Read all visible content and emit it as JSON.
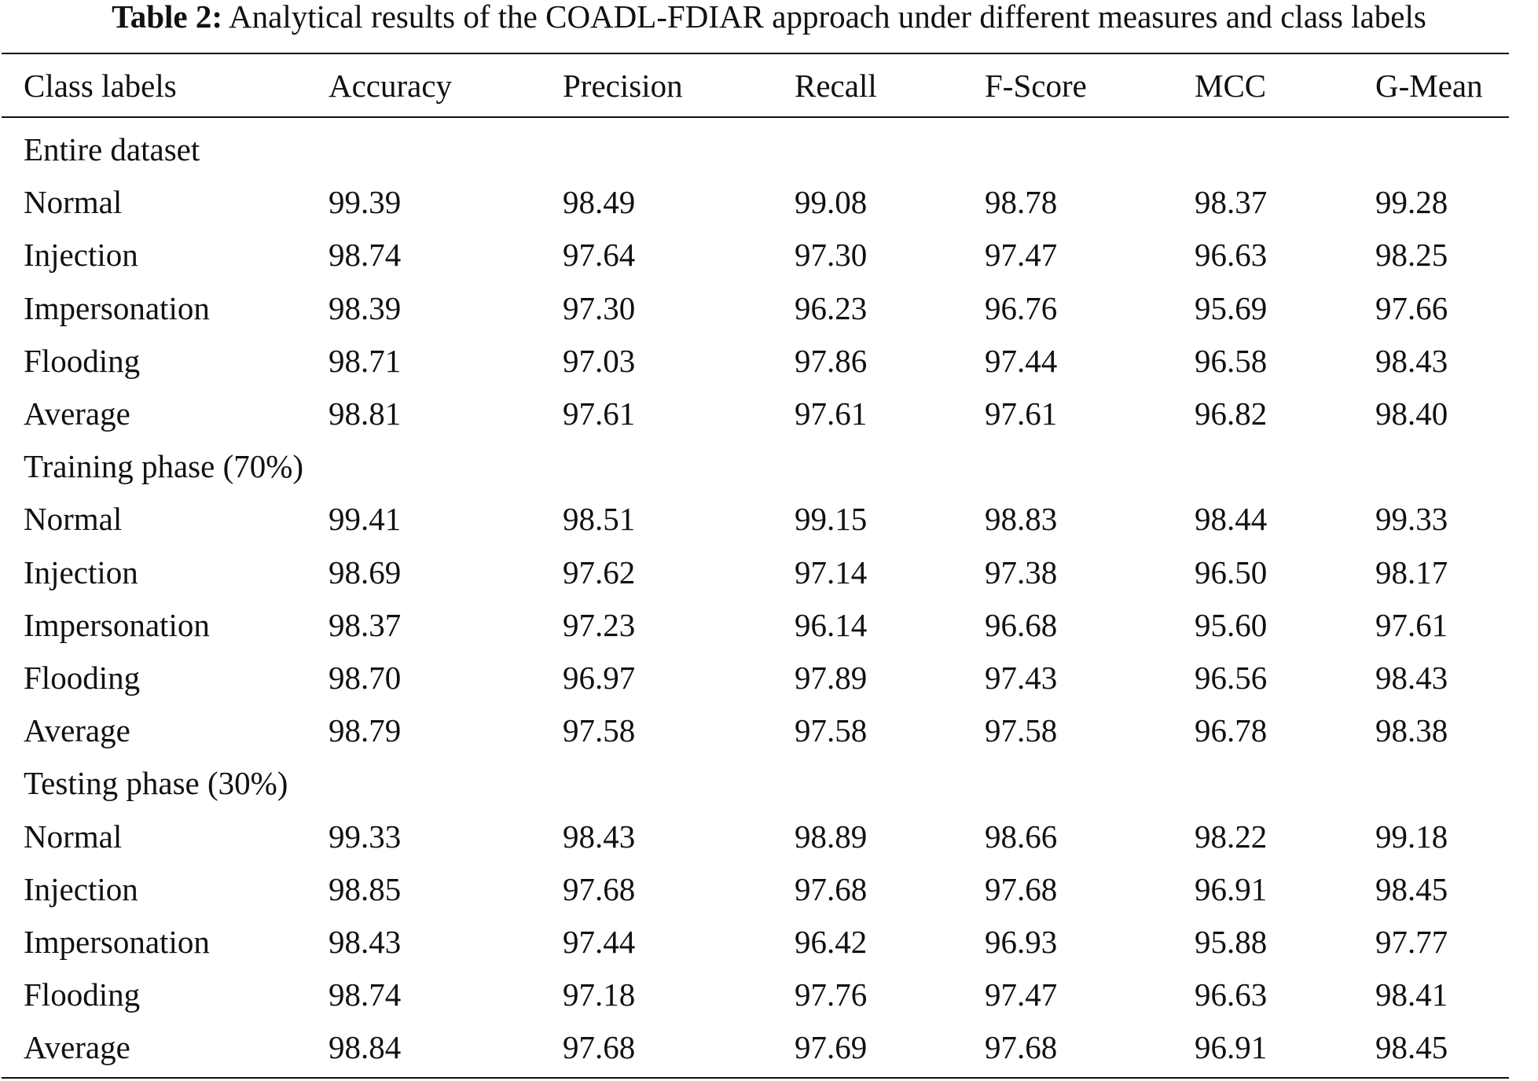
{
  "caption": {
    "label": "Table 2:",
    "text": "Analytical results of the COADL-FDIAR approach under different measures and class labels"
  },
  "table": {
    "headers": [
      "Class labels",
      "Accuracy",
      "Precision",
      "Recall",
      "F-Score",
      "MCC",
      "G-Mean"
    ],
    "sections": [
      {
        "title": "Entire dataset",
        "rows": [
          [
            "Normal",
            "99.39",
            "98.49",
            "99.08",
            "98.78",
            "98.37",
            "99.28"
          ],
          [
            "Injection",
            "98.74",
            "97.64",
            "97.30",
            "97.47",
            "96.63",
            "98.25"
          ],
          [
            "Impersonation",
            "98.39",
            "97.30",
            "96.23",
            "96.76",
            "95.69",
            "97.66"
          ],
          [
            "Flooding",
            "98.71",
            "97.03",
            "97.86",
            "97.44",
            "96.58",
            "98.43"
          ],
          [
            "Average",
            "98.81",
            "97.61",
            "97.61",
            "97.61",
            "96.82",
            "98.40"
          ]
        ]
      },
      {
        "title": "Training phase (70%)",
        "rows": [
          [
            "Normal",
            "99.41",
            "98.51",
            "99.15",
            "98.83",
            "98.44",
            "99.33"
          ],
          [
            "Injection",
            "98.69",
            "97.62",
            "97.14",
            "97.38",
            "96.50",
            "98.17"
          ],
          [
            "Impersonation",
            "98.37",
            "97.23",
            "96.14",
            "96.68",
            "95.60",
            "97.61"
          ],
          [
            "Flooding",
            "98.70",
            "96.97",
            "97.89",
            "97.43",
            "96.56",
            "98.43"
          ],
          [
            "Average",
            "98.79",
            "97.58",
            "97.58",
            "97.58",
            "96.78",
            "98.38"
          ]
        ]
      },
      {
        "title": "Testing phase (30%)",
        "rows": [
          [
            "Normal",
            "99.33",
            "98.43",
            "98.89",
            "98.66",
            "98.22",
            "99.18"
          ],
          [
            "Injection",
            "98.85",
            "97.68",
            "97.68",
            "97.68",
            "96.91",
            "98.45"
          ],
          [
            "Impersonation",
            "98.43",
            "97.44",
            "96.42",
            "96.93",
            "95.88",
            "97.77"
          ],
          [
            "Flooding",
            "98.74",
            "97.18",
            "97.76",
            "97.47",
            "96.63",
            "98.41"
          ],
          [
            "Average",
            "98.84",
            "97.68",
            "97.69",
            "97.68",
            "96.91",
            "98.45"
          ]
        ]
      }
    ]
  }
}
